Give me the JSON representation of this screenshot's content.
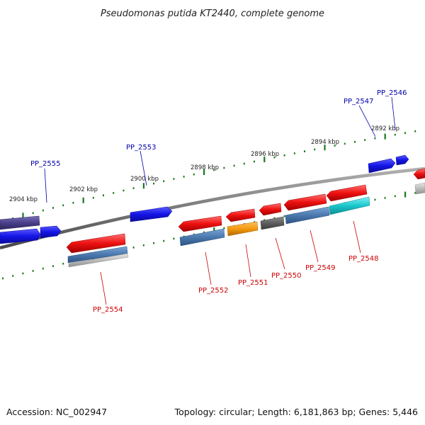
{
  "title": "Pseudomonas putida KT2440, complete genome",
  "accession_text": "Accession: NC_002947",
  "summary_text": "Topology: circular; Length: 6,181,863 bp; Genes: 5,446",
  "scale_labels": [
    "2904 kbp",
    "2902 kbp",
    "2900 kbp",
    "2898 kbp",
    "2896 kbp",
    "2894 kbp",
    "2892 kbp"
  ],
  "gene_labels_forward": [
    "PP_2555",
    "PP_2553",
    "PP_2547",
    "PP_2546"
  ],
  "gene_labels_reverse": [
    "PP_2554",
    "PP_2552",
    "PP_2551",
    "PP_2550",
    "PP_2549",
    "PP_2548"
  ],
  "colors": {
    "backbone": "#7a7a7a",
    "tick": "#1a7a1a",
    "forward_label": "#0000aa",
    "reverse_label": "#cc0000",
    "gene_blue": "#1414e6",
    "gene_navy": "#4a3f8a",
    "gene_red": "#ee1111",
    "gene_steel": "#4a78ae",
    "gene_orange": "#f59a10",
    "gene_grey": "#5e5e5e",
    "gene_cyan": "#19c6cc",
    "gene_silver": "#bcbcbc"
  }
}
